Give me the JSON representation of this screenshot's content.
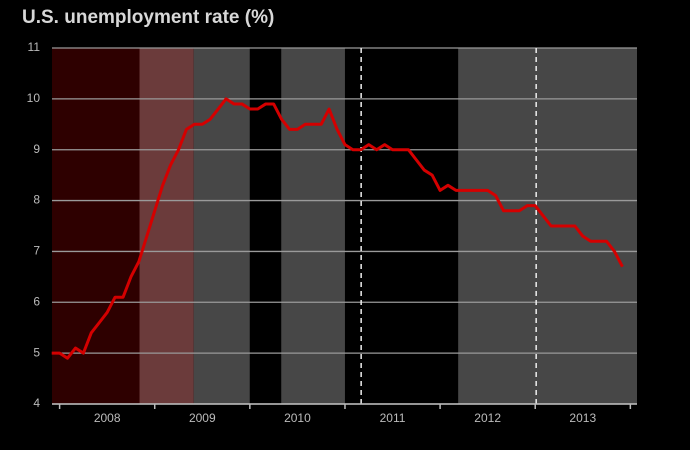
{
  "chart_data": {
    "type": "line",
    "title": "U.S. unemployment rate (%)",
    "x": [
      2007.917,
      2008.0,
      2008.083,
      2008.167,
      2008.25,
      2008.333,
      2008.417,
      2008.5,
      2008.583,
      2008.667,
      2008.75,
      2008.833,
      2008.917,
      2009.0,
      2009.083,
      2009.167,
      2009.25,
      2009.333,
      2009.417,
      2009.5,
      2009.583,
      2009.667,
      2009.75,
      2009.833,
      2009.917,
      2010.0,
      2010.083,
      2010.167,
      2010.25,
      2010.333,
      2010.417,
      2010.5,
      2010.583,
      2010.667,
      2010.75,
      2010.833,
      2010.917,
      2011.0,
      2011.083,
      2011.167,
      2011.25,
      2011.333,
      2011.417,
      2011.5,
      2011.583,
      2011.667,
      2011.75,
      2011.833,
      2011.917,
      2012.0,
      2012.083,
      2012.167,
      2012.25,
      2012.333,
      2012.417,
      2012.5,
      2012.583,
      2012.667,
      2012.75,
      2012.833,
      2012.917,
      2013.0,
      2013.083,
      2013.167,
      2013.25,
      2013.333,
      2013.417,
      2013.5,
      2013.583,
      2013.667,
      2013.75,
      2013.833,
      2013.917
    ],
    "series": [
      {
        "name": "Unemployment rate",
        "color": "#d40000",
        "values": [
          5.0,
          5.0,
          4.9,
          5.1,
          5.0,
          5.4,
          5.6,
          5.8,
          6.1,
          6.1,
          6.5,
          6.8,
          7.3,
          7.8,
          8.3,
          8.7,
          9.0,
          9.4,
          9.5,
          9.5,
          9.6,
          9.8,
          10.0,
          9.9,
          9.9,
          9.8,
          9.8,
          9.9,
          9.9,
          9.6,
          9.4,
          9.4,
          9.5,
          9.5,
          9.5,
          9.8,
          9.4,
          9.1,
          9.0,
          9.0,
          9.1,
          9.0,
          9.1,
          9.0,
          9.0,
          9.0,
          8.8,
          8.6,
          8.5,
          8.2,
          8.3,
          8.2,
          8.2,
          8.2,
          8.2,
          8.2,
          8.1,
          7.8,
          7.8,
          7.8,
          7.9,
          7.9,
          7.7,
          7.5,
          7.5,
          7.5,
          7.5,
          7.3,
          7.2,
          7.2,
          7.2,
          7.0,
          6.7
        ]
      }
    ],
    "xlim": [
      2007.92,
      2014.07
    ],
    "ylim": [
      4,
      11
    ],
    "yticks": [
      4,
      5,
      6,
      7,
      8,
      9,
      10,
      11
    ],
    "xticks": [
      {
        "value": 2008.5,
        "label": "2008"
      },
      {
        "value": 2009.5,
        "label": "2009"
      },
      {
        "value": 2010.5,
        "label": "2010"
      },
      {
        "value": 2011.5,
        "label": "2011"
      },
      {
        "value": 2012.5,
        "label": "2012"
      },
      {
        "value": 2013.5,
        "label": "2013"
      }
    ],
    "year_boundaries": [
      2008,
      2009,
      2010,
      2011,
      2012,
      2013,
      2014
    ],
    "bands": [
      {
        "from": 2007.92,
        "to": 2008.84,
        "color": "#2e0000"
      },
      {
        "from": 2008.84,
        "to": 2009.41,
        "color": "#6b3b3b"
      },
      {
        "from": 2009.41,
        "to": 2010.0,
        "color": "#474747"
      },
      {
        "from": 2010.0,
        "to": 2010.33,
        "color": "#000000"
      },
      {
        "from": 2010.33,
        "to": 2011.0,
        "color": "#474747"
      },
      {
        "from": 2011.0,
        "to": 2012.19,
        "color": "#000000"
      },
      {
        "from": 2012.19,
        "to": 2014.07,
        "color": "#474747"
      }
    ],
    "dashed_lines": [
      2011.17,
      2013.01
    ],
    "grid": true
  }
}
